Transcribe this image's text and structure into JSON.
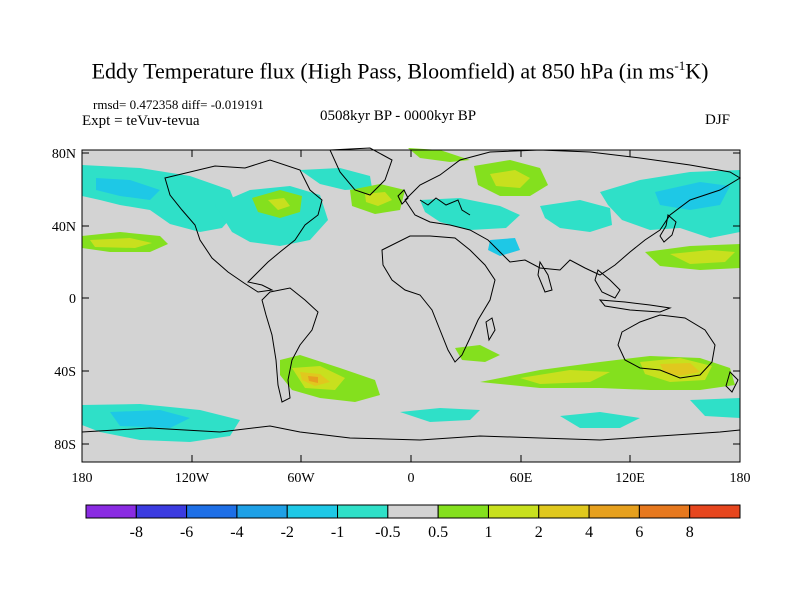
{
  "header": {
    "title_main": "Eddy Temperature flux (High Pass, Bloomfield) at 850 hPa (in ms",
    "title_sup": "-1",
    "title_end": "K)",
    "stats": "rmsd= 0.472358 diff= -0.019191",
    "expt": "Expt = teVuv-tevua",
    "period": "0508kyr BP - 0000kyr BP",
    "season": "DJF"
  },
  "axes": {
    "x_ticks": [
      "180",
      "120W",
      "60W",
      "0",
      "60E",
      "120E",
      "180"
    ],
    "y_ticks": [
      "80N",
      "40N",
      "0",
      "40S",
      "80S"
    ]
  },
  "colorbar": {
    "labels": [
      "-8",
      "-6",
      "-4",
      "-2",
      "-1",
      "-0.5",
      "0.5",
      "1",
      "2",
      "4",
      "6",
      "8"
    ],
    "colors": [
      "#8a2be2",
      "#3b3be0",
      "#1e6fe6",
      "#1ea0e6",
      "#1ec8e6",
      "#2fe0c8",
      "#d3d3d3",
      "#84e01e",
      "#c8e01e",
      "#e0c81e",
      "#e6a01e",
      "#e6781e",
      "#e6461e"
    ]
  },
  "map_colors": {
    "background": "#d3d3d3",
    "coastline": "#000000",
    "light_blue": "#2fe0c8",
    "blue": "#1ec8e6",
    "deeper_blue": "#1ea0e6",
    "green": "#84e01e",
    "yellow": "#c8e01e",
    "orange": "#e0c81e",
    "dark_orange": "#e6a01e"
  }
}
